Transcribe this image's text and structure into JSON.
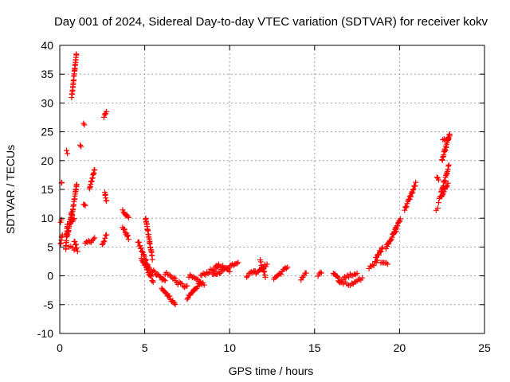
{
  "chart_data": {
    "type": "scatter",
    "title": "Day 001 of 2024, Sidereal Day-to-day VTEC variation (SDTVAR) for receiver kokv",
    "xlabel": "GPS time / hours",
    "ylabel": "SDTVAR / TECUs",
    "xlim": [
      0,
      25
    ],
    "ylim": [
      -10,
      40
    ],
    "xticks": [
      "0",
      "5",
      "10",
      "15",
      "20",
      "25"
    ],
    "yticks": [
      "-10",
      "-5",
      "0",
      "5",
      "10",
      "15",
      "20",
      "25",
      "30",
      "35",
      "40"
    ],
    "grid": true,
    "marker": "+",
    "color": "#ff0000",
    "segments": [
      {
        "x0": 0.05,
        "x1": 0.15,
        "y0": 5.5,
        "y1": 7.0
      },
      {
        "x0": 0.05,
        "x1": 0.1,
        "y0": 9.5,
        "y1": 9.5
      },
      {
        "x0": 0.1,
        "x1": 0.12,
        "y0": 16.0,
        "y1": 16.0
      },
      {
        "x0": 0.35,
        "x1": 0.45,
        "y0": 4.5,
        "y1": 9.0
      },
      {
        "x0": 0.4,
        "x1": 0.45,
        "y0": 21.5,
        "y1": 21.0
      },
      {
        "x0": 0.45,
        "x1": 0.7,
        "y0": 7.0,
        "y1": 11.0
      },
      {
        "x0": 0.55,
        "x1": 1.05,
        "y0": 5.0,
        "y1": 4.5
      },
      {
        "x0": 0.6,
        "x1": 0.85,
        "y0": 9.0,
        "y1": 10.0
      },
      {
        "x0": 0.7,
        "x1": 0.98,
        "y0": 31.0,
        "y1": 38.5
      },
      {
        "x0": 0.7,
        "x1": 1.0,
        "y0": 10.0,
        "y1": 16.0
      },
      {
        "x0": 0.85,
        "x1": 1.0,
        "y0": 6.0,
        "y1": 5.0
      },
      {
        "x0": 1.2,
        "x1": 1.25,
        "y0": 22.5,
        "y1": 22.5
      },
      {
        "x0": 1.4,
        "x1": 1.45,
        "y0": 26.5,
        "y1": 26.5
      },
      {
        "x0": 1.4,
        "x1": 1.5,
        "y0": 12.5,
        "y1": 12.0
      },
      {
        "x0": 1.5,
        "x1": 2.05,
        "y0": 5.5,
        "y1": 6.5
      },
      {
        "x0": 1.75,
        "x1": 2.05,
        "y0": 15.0,
        "y1": 18.5
      },
      {
        "x0": 2.5,
        "x1": 2.75,
        "y0": 5.5,
        "y1": 7.0
      },
      {
        "x0": 2.6,
        "x1": 2.75,
        "y0": 27.5,
        "y1": 28.5
      },
      {
        "x0": 2.65,
        "x1": 2.75,
        "y0": 14.5,
        "y1": 13.0
      },
      {
        "x0": 3.7,
        "x1": 4.05,
        "y0": 11.5,
        "y1": 10.0
      },
      {
        "x0": 3.7,
        "x1": 4.05,
        "y0": 8.5,
        "y1": 6.5
      },
      {
        "x0": 4.6,
        "x1": 5.3,
        "y0": 6.0,
        "y1": 1.0
      },
      {
        "x0": 4.8,
        "x1": 5.5,
        "y0": 3.0,
        "y1": -1.0
      },
      {
        "x0": 5.05,
        "x1": 5.45,
        "y0": 10.0,
        "y1": 3.0
      },
      {
        "x0": 5.4,
        "x1": 6.2,
        "y0": 1.0,
        "y1": -1.0
      },
      {
        "x0": 6.0,
        "x1": 6.8,
        "y0": -2.0,
        "y1": -5.0
      },
      {
        "x0": 6.2,
        "x1": 6.8,
        "y0": 0.5,
        "y1": -0.5
      },
      {
        "x0": 6.8,
        "x1": 7.5,
        "y0": -1.0,
        "y1": -2.0
      },
      {
        "x0": 7.5,
        "x1": 8.3,
        "y0": -4.0,
        "y1": -1.0
      },
      {
        "x0": 7.6,
        "x1": 8.5,
        "y0": 0.0,
        "y1": -1.5
      },
      {
        "x0": 8.3,
        "x1": 9.3,
        "y0": 0.0,
        "y1": 1.5
      },
      {
        "x0": 9.0,
        "x1": 10.5,
        "y0": 0.0,
        "y1": 2.5
      },
      {
        "x0": 9.2,
        "x1": 10.0,
        "y0": 2.0,
        "y1": 1.0
      },
      {
        "x0": 11.0,
        "x1": 11.5,
        "y0": 0.0,
        "y1": 1.0
      },
      {
        "x0": 11.5,
        "x1": 12.2,
        "y0": 0.5,
        "y1": 2.0
      },
      {
        "x0": 11.8,
        "x1": 12.1,
        "y0": 2.5,
        "y1": 0.0
      },
      {
        "x0": 12.6,
        "x1": 13.4,
        "y0": -0.5,
        "y1": 1.5
      },
      {
        "x0": 14.2,
        "x1": 14.5,
        "y0": -0.5,
        "y1": 0.5
      },
      {
        "x0": 15.2,
        "x1": 15.4,
        "y0": 0.0,
        "y1": 0.5
      },
      {
        "x0": 16.1,
        "x1": 16.5,
        "y0": 0.5,
        "y1": -1.0
      },
      {
        "x0": 16.4,
        "x1": 17.2,
        "y0": -1.0,
        "y1": -1.5
      },
      {
        "x0": 16.6,
        "x1": 17.5,
        "y0": -0.5,
        "y1": 0.5
      },
      {
        "x0": 17.2,
        "x1": 17.8,
        "y0": -1.5,
        "y1": -0.5
      },
      {
        "x0": 18.2,
        "x1": 18.7,
        "y0": 1.5,
        "y1": 2.5
      },
      {
        "x0": 18.6,
        "x1": 19.0,
        "y0": 3.0,
        "y1": 5.0
      },
      {
        "x0": 18.9,
        "x1": 19.3,
        "y0": 2.5,
        "y1": 2.0
      },
      {
        "x0": 19.2,
        "x1": 19.8,
        "y0": 5.0,
        "y1": 8.0
      },
      {
        "x0": 19.6,
        "x1": 20.05,
        "y0": 7.0,
        "y1": 10.0
      },
      {
        "x0": 20.3,
        "x1": 20.6,
        "y0": 11.5,
        "y1": 13.5
      },
      {
        "x0": 20.6,
        "x1": 20.95,
        "y0": 13.5,
        "y1": 16.0
      },
      {
        "x0": 22.15,
        "x1": 22.25,
        "y0": 11.5,
        "y1": 11.5
      },
      {
        "x0": 22.2,
        "x1": 22.3,
        "y0": 17.0,
        "y1": 16.5
      },
      {
        "x0": 22.3,
        "x1": 22.85,
        "y0": 13.0,
        "y1": 16.0
      },
      {
        "x0": 22.45,
        "x1": 22.9,
        "y0": 14.5,
        "y1": 19.0
      },
      {
        "x0": 22.5,
        "x1": 22.95,
        "y0": 20.0,
        "y1": 24.5
      },
      {
        "x0": 22.55,
        "x1": 22.95,
        "y0": 23.5,
        "y1": 24.0
      }
    ]
  }
}
